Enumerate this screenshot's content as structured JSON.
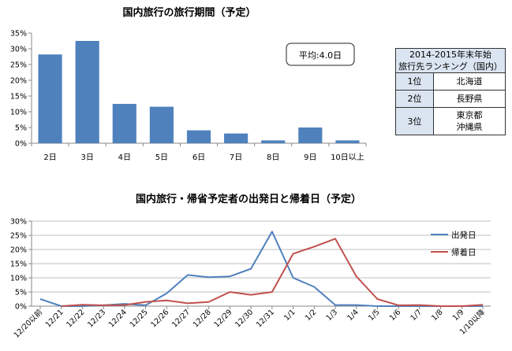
{
  "chart_data": [
    {
      "type": "bar",
      "title": "国内旅行の旅行期間（予定）",
      "categories": [
        "2日",
        "3日",
        "4日",
        "5日",
        "6日",
        "7日",
        "8日",
        "9日",
        "10日以上"
      ],
      "values": [
        28.2,
        32.5,
        12.5,
        11.6,
        4.1,
        3.1,
        0.9,
        5.0,
        0.9
      ],
      "ylim": [
        0,
        35
      ],
      "yticks": [
        "0%",
        "5%",
        "10%",
        "15%",
        "20%",
        "25%",
        "30%",
        "35%"
      ],
      "annotation": "平均:4.0日",
      "color": "#4f81bd"
    },
    {
      "type": "line",
      "title": "国内旅行・帰省予定者の出発日と帰着日（予定）",
      "categories": [
        "12/20以前",
        "12/21",
        "12/22",
        "12/23",
        "12/24",
        "12/25",
        "12/26",
        "12/27",
        "12/28",
        "12/29",
        "12/30",
        "12/31",
        "1/1",
        "1/2",
        "1/3",
        "1/4",
        "1/5",
        "1/6",
        "1/7",
        "1/8",
        "1/9",
        "1/10以降"
      ],
      "series": [
        {
          "name": "出発日",
          "color": "#4f81bd",
          "values": [
            2.5,
            0,
            0,
            0.3,
            0.8,
            0.3,
            4.5,
            11,
            10.2,
            10.5,
            13.2,
            26.3,
            10,
            6.8,
            0.4,
            0.4,
            0,
            0,
            0,
            0,
            0,
            0
          ]
        },
        {
          "name": "帰着日",
          "color": "#c0504d",
          "values": [
            null,
            0,
            0.5,
            0.3,
            0.4,
            1.5,
            2,
            1,
            1.5,
            5,
            4,
            5,
            18.5,
            21,
            23.8,
            10.5,
            2.5,
            0.3,
            0.4,
            0,
            0,
            0.5
          ]
        }
      ],
      "ylim": [
        0,
        30
      ],
      "yticks": [
        "0%",
        "5%",
        "10%",
        "15%",
        "20%",
        "25%",
        "30%"
      ]
    }
  ],
  "ranking": {
    "title_line1": "2014-2015年末年始",
    "title_line2": "旅行先ランキング（国内）",
    "rows": [
      {
        "rank": "1位",
        "places": [
          "北海道"
        ]
      },
      {
        "rank": "2位",
        "places": [
          "長野県"
        ]
      },
      {
        "rank": "3位",
        "places": [
          "東京都",
          "沖縄県"
        ]
      }
    ]
  }
}
